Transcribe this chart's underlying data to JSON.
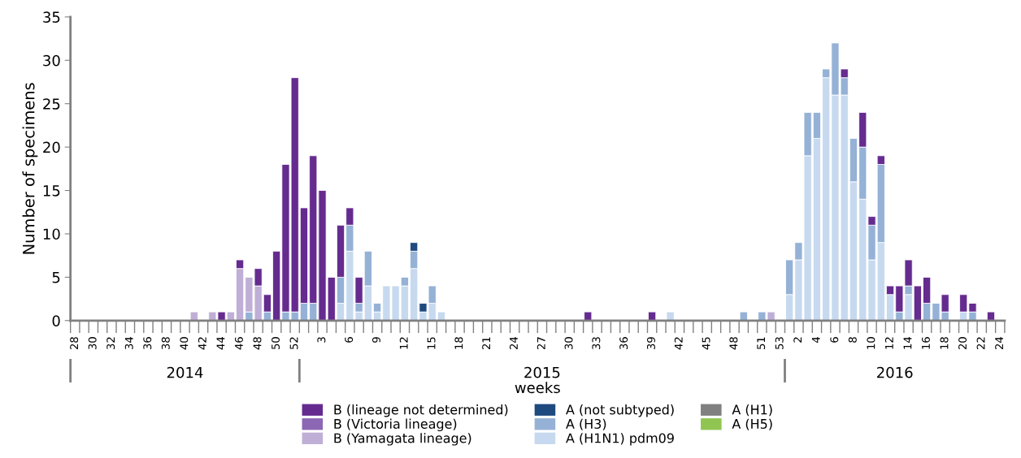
{
  "chart_data": {
    "type": "bar",
    "stacked": true,
    "ylabel": "Number of specimens",
    "xlabel": "weeks",
    "annotations": [
      "2014",
      "2015",
      "2016"
    ],
    "categories": [
      "28",
      null,
      "30",
      null,
      "32",
      null,
      "34",
      null,
      "36",
      null,
      "38",
      null,
      "40",
      null,
      "42",
      null,
      "44",
      null,
      "46",
      null,
      "48",
      null,
      "50",
      null,
      "52",
      null,
      null,
      "3",
      null,
      null,
      "6",
      null,
      null,
      "9",
      null,
      null,
      "12",
      null,
      null,
      "15",
      null,
      null,
      "18",
      null,
      null,
      "21",
      null,
      null,
      "24",
      null,
      null,
      "27",
      null,
      null,
      "30",
      null,
      null,
      "33",
      null,
      null,
      "36",
      null,
      null,
      "39",
      null,
      null,
      "42",
      null,
      null,
      "45",
      null,
      null,
      "48",
      null,
      null,
      "51",
      null,
      "53",
      null,
      "2",
      null,
      "4",
      null,
      "6",
      null,
      "8",
      null,
      "10",
      null,
      "12",
      null,
      "14",
      null,
      "16",
      null,
      "18",
      null,
      "20",
      null,
      "22",
      null,
      "24"
    ],
    "ylim": [
      0,
      35
    ],
    "yticks": [
      0,
      5,
      10,
      15,
      20,
      25,
      30,
      35
    ],
    "grid": false,
    "legend": "bottom",
    "series": [
      {
        "name": "A (H5)",
        "color": "#8fc550",
        "values": [
          0,
          0,
          0,
          0,
          0,
          0,
          0,
          0,
          0,
          0,
          0,
          0,
          0,
          0,
          0,
          0,
          0,
          0,
          0,
          0,
          0,
          0,
          0,
          0,
          0,
          0,
          0,
          0,
          0,
          0,
          0,
          0,
          0,
          0,
          0,
          0,
          0,
          0,
          0,
          0,
          0,
          0,
          0,
          0,
          0,
          0,
          0,
          0,
          0,
          0,
          0,
          0,
          0,
          0,
          0,
          0,
          0,
          0,
          0,
          0,
          0,
          0,
          0,
          0,
          0,
          0,
          0,
          0,
          0,
          0,
          0,
          0,
          0,
          0,
          0,
          0,
          0,
          0,
          0,
          0,
          0,
          0,
          0,
          0,
          0,
          0,
          0,
          0,
          0,
          0,
          0,
          0,
          0,
          0,
          0,
          0,
          0,
          0,
          0,
          0,
          0,
          0
        ]
      },
      {
        "name": "A (H1)",
        "color": "#808080",
        "values": [
          0,
          0,
          0,
          0,
          0,
          0,
          0,
          0,
          0,
          0,
          0,
          0,
          0,
          0,
          0,
          0,
          0,
          0,
          0,
          0,
          0,
          0,
          0,
          0,
          0,
          0,
          0,
          0,
          0,
          0,
          0,
          0,
          0,
          0,
          0,
          0,
          0,
          0,
          0,
          0,
          0,
          0,
          0,
          0,
          0,
          0,
          0,
          0,
          0,
          0,
          0,
          0,
          0,
          0,
          0,
          0,
          0,
          0,
          0,
          0,
          0,
          0,
          0,
          0,
          0,
          0,
          0,
          0,
          0,
          0,
          0,
          0,
          0,
          0,
          0,
          0,
          0,
          0,
          0,
          0,
          0,
          0,
          0,
          0,
          0,
          0,
          0,
          0,
          0,
          0,
          0,
          0,
          0,
          0,
          0,
          0,
          0,
          0,
          0,
          0,
          0,
          0
        ]
      },
      {
        "name": "A (H1N1) pdm09",
        "color": "#c6d9ef",
        "values": [
          0,
          0,
          0,
          0,
          0,
          0,
          0,
          0,
          0,
          0,
          0,
          0,
          0,
          0,
          0,
          0,
          0,
          0,
          0,
          0,
          0,
          0,
          0,
          0,
          0,
          0,
          0,
          0,
          0,
          2,
          8,
          1,
          4,
          1,
          4,
          4,
          4,
          6,
          1,
          2,
          1,
          0,
          0,
          0,
          0,
          0,
          0,
          0,
          0,
          0,
          0,
          0,
          0,
          0,
          0,
          0,
          0,
          0,
          0,
          0,
          0,
          0,
          0,
          0,
          0,
          1,
          0,
          0,
          0,
          0,
          0,
          0,
          0,
          0,
          0,
          0,
          0,
          0,
          3,
          7,
          19,
          21,
          28,
          26,
          26,
          16,
          14,
          7,
          9,
          3,
          0,
          3,
          0,
          0,
          0,
          0,
          0,
          1,
          0,
          0,
          0,
          0
        ]
      },
      {
        "name": "A (H3)",
        "color": "#95b1d6",
        "values": [
          0,
          0,
          0,
          0,
          0,
          0,
          0,
          0,
          0,
          0,
          0,
          0,
          0,
          0,
          0,
          0,
          0,
          0,
          0,
          1,
          0,
          1,
          0,
          1,
          1,
          2,
          2,
          0,
          0,
          3,
          3,
          1,
          4,
          1,
          0,
          0,
          1,
          2,
          0,
          2,
          0,
          0,
          0,
          0,
          0,
          0,
          0,
          0,
          0,
          0,
          0,
          0,
          0,
          0,
          0,
          0,
          0,
          0,
          0,
          0,
          0,
          0,
          0,
          0,
          0,
          0,
          0,
          0,
          0,
          0,
          0,
          0,
          0,
          1,
          0,
          1,
          0,
          0,
          4,
          2,
          5,
          3,
          1,
          6,
          2,
          5,
          6,
          4,
          9,
          0,
          1,
          1,
          0,
          2,
          2,
          1,
          0,
          0,
          1,
          0,
          0,
          0
        ]
      },
      {
        "name": "A (not subtyped)",
        "color": "#1f4a7f",
        "values": [
          0,
          0,
          0,
          0,
          0,
          0,
          0,
          0,
          0,
          0,
          0,
          0,
          0,
          0,
          0,
          0,
          0,
          0,
          0,
          0,
          0,
          0,
          0,
          0,
          0,
          0,
          0,
          0,
          0,
          0,
          0,
          0,
          0,
          0,
          0,
          0,
          0,
          1,
          1,
          0,
          0,
          0,
          0,
          0,
          0,
          0,
          0,
          0,
          0,
          0,
          0,
          0,
          0,
          0,
          0,
          0,
          0,
          0,
          0,
          0,
          0,
          0,
          0,
          0,
          0,
          0,
          0,
          0,
          0,
          0,
          0,
          0,
          0,
          0,
          0,
          0,
          0,
          0,
          0,
          0,
          0,
          0,
          0,
          0,
          0,
          0,
          0,
          0,
          0,
          0,
          0,
          0,
          0,
          0,
          0,
          0,
          0,
          0,
          0,
          0,
          0,
          0
        ]
      },
      {
        "name": "B (Yamagata lineage)",
        "color": "#bfaed6",
        "values": [
          0,
          0,
          0,
          0,
          0,
          0,
          0,
          0,
          0,
          0,
          0,
          0,
          0,
          1,
          0,
          1,
          0,
          1,
          6,
          4,
          4,
          0,
          0,
          0,
          0,
          0,
          0,
          0,
          0,
          0,
          0,
          0,
          0,
          0,
          0,
          0,
          0,
          0,
          0,
          0,
          0,
          0,
          0,
          0,
          0,
          0,
          0,
          0,
          0,
          0,
          0,
          0,
          0,
          0,
          0,
          0,
          0,
          0,
          0,
          0,
          0,
          0,
          0,
          0,
          0,
          0,
          0,
          0,
          0,
          0,
          0,
          0,
          0,
          0,
          0,
          0,
          1,
          0,
          0,
          0,
          0,
          0,
          0,
          0,
          0,
          0,
          0,
          0,
          0,
          0,
          0,
          0,
          0,
          0,
          0,
          0,
          0,
          0,
          0,
          0,
          0,
          0
        ]
      },
      {
        "name": "B (Victoria lineage)",
        "color": "#8c67b3",
        "values": [
          0,
          0,
          0,
          0,
          0,
          0,
          0,
          0,
          0,
          0,
          0,
          0,
          0,
          0,
          0,
          0,
          0,
          0,
          0,
          0,
          0,
          0,
          0,
          0,
          0,
          0,
          0,
          0,
          0,
          0,
          0,
          0,
          0,
          0,
          0,
          0,
          0,
          0,
          0,
          0,
          0,
          0,
          0,
          0,
          0,
          0,
          0,
          0,
          0,
          0,
          0,
          0,
          0,
          0,
          0,
          0,
          0,
          0,
          0,
          0,
          0,
          0,
          0,
          0,
          0,
          0,
          0,
          0,
          0,
          0,
          0,
          0,
          0,
          0,
          0,
          0,
          0,
          0,
          0,
          0,
          0,
          0,
          0,
          0,
          0,
          0,
          0,
          0,
          0,
          0,
          0,
          0,
          0,
          0,
          0,
          0,
          0,
          0,
          0,
          0,
          0,
          0
        ]
      },
      {
        "name": "B (lineage not determined)",
        "color": "#652b8f",
        "values": [
          0,
          0,
          0,
          0,
          0,
          0,
          0,
          0,
          0,
          0,
          0,
          0,
          0,
          0,
          0,
          0,
          1,
          0,
          1,
          0,
          2,
          2,
          8,
          17,
          27,
          11,
          17,
          15,
          5,
          6,
          2,
          3,
          0,
          0,
          0,
          0,
          0,
          0,
          0,
          0,
          0,
          0,
          0,
          0,
          0,
          0,
          0,
          0,
          0,
          0,
          0,
          0,
          0,
          0,
          0,
          0,
          1,
          0,
          0,
          0,
          0,
          0,
          0,
          1,
          0,
          0,
          0,
          0,
          0,
          0,
          0,
          0,
          0,
          0,
          0,
          0,
          0,
          0,
          0,
          0,
          0,
          0,
          0,
          0,
          1,
          0,
          4,
          1,
          1,
          1,
          3,
          3,
          4,
          3,
          0,
          2,
          0,
          2,
          1,
          0,
          1,
          0
        ]
      }
    ]
  }
}
